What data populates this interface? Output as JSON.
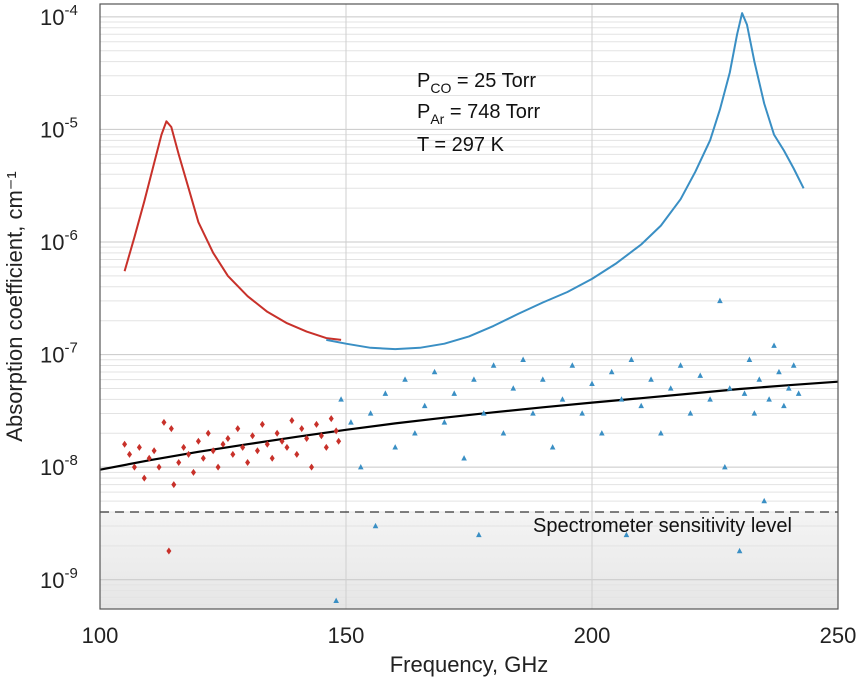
{
  "chart_data": {
    "type": "line+scatter",
    "xlabel": "Frequency, GHz",
    "ylabel": "Absorption coefficient, cm⁻¹",
    "x_ticks": [
      100,
      150,
      200,
      250
    ],
    "y_ticks": [
      {
        "value": 1e-09,
        "mantissa": "10",
        "exp": "-9"
      },
      {
        "value": 1e-08,
        "mantissa": "10",
        "exp": "-8"
      },
      {
        "value": 1e-07,
        "mantissa": "10",
        "exp": "-7"
      },
      {
        "value": 1e-06,
        "mantissa": "10",
        "exp": "-6"
      },
      {
        "value": 1e-05,
        "mantissa": "10",
        "exp": "-5"
      },
      {
        "value": 0.0001,
        "mantissa": "10",
        "exp": "-4"
      }
    ],
    "xlim": [
      100,
      250
    ],
    "ylim": [
      5.5e-10,
      0.00013
    ],
    "y_scale": "log",
    "grid": true,
    "annotations": {
      "pressure_co": {
        "main": "P",
        "sub": "CO",
        "rest": " = 25 Torr"
      },
      "pressure_ar": {
        "main": "P",
        "sub": "Ar",
        "rest": " = 748 Torr"
      },
      "temperature": "T = 297 K",
      "sensitivity_label": "Spectrometer sensitivity level"
    },
    "sensitivity_level": 4e-09,
    "colors": {
      "red": "#c8312a",
      "blue": "#3a8fc4",
      "fit": "#000000",
      "sensitivity": "#333333",
      "shade": "#e6e6e6"
    },
    "series": [
      {
        "kind": "line",
        "color_key": "red",
        "points": [
          [
            105,
            5.5e-07
          ],
          [
            107,
            1.1e-06
          ],
          [
            109,
            2.3e-06
          ],
          [
            111,
            5e-06
          ],
          [
            112.5,
            9e-06
          ],
          [
            113.5,
            1.18e-05
          ],
          [
            114.5,
            1.05e-05
          ],
          [
            116,
            6e-06
          ],
          [
            118,
            3e-06
          ],
          [
            120,
            1.5e-06
          ],
          [
            123,
            8e-07
          ],
          [
            126,
            5e-07
          ],
          [
            130,
            3.3e-07
          ],
          [
            134,
            2.4e-07
          ],
          [
            138,
            1.9e-07
          ],
          [
            142,
            1.6e-07
          ],
          [
            146,
            1.4e-07
          ],
          [
            149,
            1.35e-07
          ]
        ]
      },
      {
        "kind": "line",
        "color_key": "blue",
        "points": [
          [
            146,
            1.35e-07
          ],
          [
            150,
            1.25e-07
          ],
          [
            155,
            1.15e-07
          ],
          [
            160,
            1.12e-07
          ],
          [
            165,
            1.15e-07
          ],
          [
            170,
            1.25e-07
          ],
          [
            175,
            1.45e-07
          ],
          [
            180,
            1.8e-07
          ],
          [
            185,
            2.3e-07
          ],
          [
            190,
            2.9e-07
          ],
          [
            195,
            3.6e-07
          ],
          [
            200,
            4.7e-07
          ],
          [
            205,
            6.5e-07
          ],
          [
            210,
            9.5e-07
          ],
          [
            214,
            1.4e-06
          ],
          [
            218,
            2.4e-06
          ],
          [
            221,
            4.2e-06
          ],
          [
            224,
            8e-06
          ],
          [
            226,
            1.5e-05
          ],
          [
            228,
            3.2e-05
          ],
          [
            229.5,
            7e-05
          ],
          [
            230.5,
            0.000108
          ],
          [
            231.5,
            8.5e-05
          ],
          [
            233,
            4e-05
          ],
          [
            235,
            1.7e-05
          ],
          [
            237,
            9e-06
          ],
          [
            239,
            6.5e-06
          ],
          [
            241,
            4.5e-06
          ],
          [
            243,
            3e-06
          ]
        ]
      },
      {
        "kind": "line",
        "color_key": "fit",
        "points": [
          [
            100,
            9.5e-09
          ],
          [
            110,
            1.15e-08
          ],
          [
            120,
            1.37e-08
          ],
          [
            130,
            1.6e-08
          ],
          [
            140,
            1.86e-08
          ],
          [
            150,
            2.15e-08
          ],
          [
            160,
            2.45e-08
          ],
          [
            170,
            2.75e-08
          ],
          [
            180,
            3.07e-08
          ],
          [
            190,
            3.4e-08
          ],
          [
            200,
            3.75e-08
          ],
          [
            210,
            4.1e-08
          ],
          [
            220,
            4.5e-08
          ],
          [
            230,
            4.95e-08
          ],
          [
            240,
            5.35e-08
          ],
          [
            250,
            5.75e-08
          ]
        ]
      },
      {
        "kind": "scatter",
        "marker": "diamond",
        "color_key": "red",
        "points": [
          [
            105,
            1.6e-08
          ],
          [
            106,
            1.3e-08
          ],
          [
            107,
            1e-08
          ],
          [
            108,
            1.5e-08
          ],
          [
            109,
            8e-09
          ],
          [
            110,
            1.2e-08
          ],
          [
            111,
            1.4e-08
          ],
          [
            112,
            1e-08
          ],
          [
            113,
            2.5e-08
          ],
          [
            114,
            1.8e-09
          ],
          [
            114.5,
            2.2e-08
          ],
          [
            115,
            7e-09
          ],
          [
            116,
            1.1e-08
          ],
          [
            117,
            1.5e-08
          ],
          [
            118,
            1.3e-08
          ],
          [
            119,
            9e-09
          ],
          [
            120,
            1.7e-08
          ],
          [
            121,
            1.2e-08
          ],
          [
            122,
            2e-08
          ],
          [
            123,
            1.4e-08
          ],
          [
            124,
            1e-08
          ],
          [
            125,
            1.6e-08
          ],
          [
            126,
            1.8e-08
          ],
          [
            127,
            1.3e-08
          ],
          [
            128,
            2.2e-08
          ],
          [
            129,
            1.5e-08
          ],
          [
            130,
            1.1e-08
          ],
          [
            131,
            1.9e-08
          ],
          [
            132,
            1.4e-08
          ],
          [
            133,
            2.4e-08
          ],
          [
            134,
            1.6e-08
          ],
          [
            135,
            1.2e-08
          ],
          [
            136,
            2e-08
          ],
          [
            137,
            1.7e-08
          ],
          [
            138,
            1.5e-08
          ],
          [
            139,
            2.6e-08
          ],
          [
            140,
            1.3e-08
          ],
          [
            141,
            2.2e-08
          ],
          [
            142,
            1.8e-08
          ],
          [
            143,
            1e-08
          ],
          [
            144,
            2.4e-08
          ],
          [
            145,
            1.9e-08
          ],
          [
            146,
            1.5e-08
          ],
          [
            147,
            2.7e-08
          ],
          [
            148,
            2.1e-08
          ],
          [
            148.5,
            1.7e-08
          ]
        ]
      },
      {
        "kind": "scatter",
        "marker": "triangle",
        "color_key": "blue",
        "points": [
          [
            148,
            6.5e-10
          ],
          [
            149,
            4e-08
          ],
          [
            151,
            2.5e-08
          ],
          [
            153,
            1e-08
          ],
          [
            155,
            3e-08
          ],
          [
            156,
            3e-09
          ],
          [
            158,
            4.5e-08
          ],
          [
            160,
            1.5e-08
          ],
          [
            162,
            6e-08
          ],
          [
            164,
            2e-08
          ],
          [
            166,
            3.5e-08
          ],
          [
            168,
            7e-08
          ],
          [
            170,
            2.5e-08
          ],
          [
            172,
            4.5e-08
          ],
          [
            174,
            1.2e-08
          ],
          [
            176,
            6e-08
          ],
          [
            177,
            2.5e-09
          ],
          [
            178,
            3e-08
          ],
          [
            180,
            8e-08
          ],
          [
            182,
            2e-08
          ],
          [
            184,
            5e-08
          ],
          [
            186,
            9e-08
          ],
          [
            188,
            3e-08
          ],
          [
            190,
            6e-08
          ],
          [
            192,
            1.5e-08
          ],
          [
            194,
            4e-08
          ],
          [
            196,
            8e-08
          ],
          [
            198,
            3e-08
          ],
          [
            200,
            5.5e-08
          ],
          [
            202,
            2e-08
          ],
          [
            204,
            7e-08
          ],
          [
            206,
            4e-08
          ],
          [
            207,
            2.5e-09
          ],
          [
            208,
            9e-08
          ],
          [
            210,
            3.5e-08
          ],
          [
            212,
            6e-08
          ],
          [
            214,
            2e-08
          ],
          [
            216,
            5e-08
          ],
          [
            218,
            8e-08
          ],
          [
            220,
            3e-08
          ],
          [
            222,
            6.5e-08
          ],
          [
            224,
            4e-08
          ],
          [
            226,
            3e-07
          ],
          [
            227,
            1e-08
          ],
          [
            228,
            5e-08
          ],
          [
            230,
            1.8e-09
          ],
          [
            231,
            4.5e-08
          ],
          [
            232,
            9e-08
          ],
          [
            233,
            3e-08
          ],
          [
            234,
            6e-08
          ],
          [
            235,
            5e-09
          ],
          [
            236,
            4e-08
          ],
          [
            237,
            1.2e-07
          ],
          [
            238,
            7e-08
          ],
          [
            239,
            3.5e-08
          ],
          [
            240,
            5e-08
          ],
          [
            241,
            8e-08
          ],
          [
            242,
            4.5e-08
          ]
        ]
      }
    ]
  }
}
